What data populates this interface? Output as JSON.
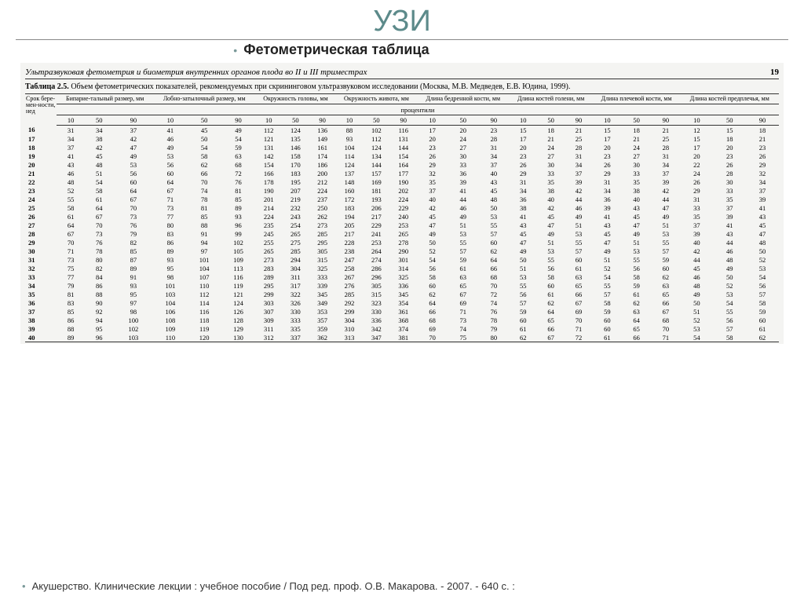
{
  "title": "УЗИ",
  "subtitle": "Фетометрическая таблица",
  "scan_header_left": "Ультразвуковая фетометрия и биометрия внутренних органов плода во II и III триместрах",
  "scan_header_page": "19",
  "caption_b": "Таблица 2.5.",
  "caption_rest": " Объем фетометрических показателей, рекомендуемых при скрининговом ультразвуковом исследовании (Москва, М.В. Медведев, Е.В. Юдина, 1999).",
  "col0": "Срок бере-мен-ности, нед",
  "groups": [
    "Бипарие-тальный размер, мм",
    "Лобно-затылочный размер, мм",
    "Окружность головы, мм",
    "Окружность живота, мм",
    "Длина бедренной кости, мм",
    "Длина костей голени, мм",
    "Длина плечевой кости, мм",
    "Длина костей предплечья, мм"
  ],
  "percentile_label": "процентили",
  "sub": [
    "10",
    "50",
    "90"
  ],
  "rows": [
    [
      "16",
      "31",
      "34",
      "37",
      "41",
      "45",
      "49",
      "112",
      "124",
      "136",
      "88",
      "102",
      "116",
      "17",
      "20",
      "23",
      "15",
      "18",
      "21",
      "15",
      "18",
      "21",
      "12",
      "15",
      "18"
    ],
    [
      "17",
      "34",
      "38",
      "42",
      "46",
      "50",
      "54",
      "121",
      "135",
      "149",
      "93",
      "112",
      "131",
      "20",
      "24",
      "28",
      "17",
      "21",
      "25",
      "17",
      "21",
      "25",
      "15",
      "18",
      "21"
    ],
    [
      "18",
      "37",
      "42",
      "47",
      "49",
      "54",
      "59",
      "131",
      "146",
      "161",
      "104",
      "124",
      "144",
      "23",
      "27",
      "31",
      "20",
      "24",
      "28",
      "20",
      "24",
      "28",
      "17",
      "20",
      "23"
    ],
    [
      "19",
      "41",
      "45",
      "49",
      "53",
      "58",
      "63",
      "142",
      "158",
      "174",
      "114",
      "134",
      "154",
      "26",
      "30",
      "34",
      "23",
      "27",
      "31",
      "23",
      "27",
      "31",
      "20",
      "23",
      "26"
    ],
    [
      "20",
      "43",
      "48",
      "53",
      "56",
      "62",
      "68",
      "154",
      "170",
      "186",
      "124",
      "144",
      "164",
      "29",
      "33",
      "37",
      "26",
      "30",
      "34",
      "26",
      "30",
      "34",
      "22",
      "26",
      "29"
    ],
    [
      "21",
      "46",
      "51",
      "56",
      "60",
      "66",
      "72",
      "166",
      "183",
      "200",
      "137",
      "157",
      "177",
      "32",
      "36",
      "40",
      "29",
      "33",
      "37",
      "29",
      "33",
      "37",
      "24",
      "28",
      "32"
    ],
    [
      "22",
      "48",
      "54",
      "60",
      "64",
      "70",
      "76",
      "178",
      "195",
      "212",
      "148",
      "169",
      "190",
      "35",
      "39",
      "43",
      "31",
      "35",
      "39",
      "31",
      "35",
      "39",
      "26",
      "30",
      "34"
    ],
    [
      "23",
      "52",
      "58",
      "64",
      "67",
      "74",
      "81",
      "190",
      "207",
      "224",
      "160",
      "181",
      "202",
      "37",
      "41",
      "45",
      "34",
      "38",
      "42",
      "34",
      "38",
      "42",
      "29",
      "33",
      "37"
    ],
    [
      "24",
      "55",
      "61",
      "67",
      "71",
      "78",
      "85",
      "201",
      "219",
      "237",
      "172",
      "193",
      "224",
      "40",
      "44",
      "48",
      "36",
      "40",
      "44",
      "36",
      "40",
      "44",
      "31",
      "35",
      "39"
    ],
    [
      "25",
      "58",
      "64",
      "70",
      "73",
      "81",
      "89",
      "214",
      "232",
      "250",
      "183",
      "206",
      "229",
      "42",
      "46",
      "50",
      "38",
      "42",
      "46",
      "39",
      "43",
      "47",
      "33",
      "37",
      "41"
    ],
    [
      "26",
      "61",
      "67",
      "73",
      "77",
      "85",
      "93",
      "224",
      "243",
      "262",
      "194",
      "217",
      "240",
      "45",
      "49",
      "53",
      "41",
      "45",
      "49",
      "41",
      "45",
      "49",
      "35",
      "39",
      "43"
    ],
    [
      "27",
      "64",
      "70",
      "76",
      "80",
      "88",
      "96",
      "235",
      "254",
      "273",
      "205",
      "229",
      "253",
      "47",
      "51",
      "55",
      "43",
      "47",
      "51",
      "43",
      "47",
      "51",
      "37",
      "41",
      "45"
    ],
    [
      "28",
      "67",
      "73",
      "79",
      "83",
      "91",
      "99",
      "245",
      "265",
      "285",
      "217",
      "241",
      "265",
      "49",
      "53",
      "57",
      "45",
      "49",
      "53",
      "45",
      "49",
      "53",
      "39",
      "43",
      "47"
    ],
    [
      "29",
      "70",
      "76",
      "82",
      "86",
      "94",
      "102",
      "255",
      "275",
      "295",
      "228",
      "253",
      "278",
      "50",
      "55",
      "60",
      "47",
      "51",
      "55",
      "47",
      "51",
      "55",
      "40",
      "44",
      "48"
    ],
    [
      "30",
      "71",
      "78",
      "85",
      "89",
      "97",
      "105",
      "265",
      "285",
      "305",
      "238",
      "264",
      "290",
      "52",
      "57",
      "62",
      "49",
      "53",
      "57",
      "49",
      "53",
      "57",
      "42",
      "46",
      "50"
    ],
    [
      "31",
      "73",
      "80",
      "87",
      "93",
      "101",
      "109",
      "273",
      "294",
      "315",
      "247",
      "274",
      "301",
      "54",
      "59",
      "64",
      "50",
      "55",
      "60",
      "51",
      "55",
      "59",
      "44",
      "48",
      "52"
    ],
    [
      "32",
      "75",
      "82",
      "89",
      "95",
      "104",
      "113",
      "283",
      "304",
      "325",
      "258",
      "286",
      "314",
      "56",
      "61",
      "66",
      "51",
      "56",
      "61",
      "52",
      "56",
      "60",
      "45",
      "49",
      "53"
    ],
    [
      "33",
      "77",
      "84",
      "91",
      "98",
      "107",
      "116",
      "289",
      "311",
      "333",
      "267",
      "296",
      "325",
      "58",
      "63",
      "68",
      "53",
      "58",
      "63",
      "54",
      "58",
      "62",
      "46",
      "50",
      "54"
    ],
    [
      "34",
      "79",
      "86",
      "93",
      "101",
      "110",
      "119",
      "295",
      "317",
      "339",
      "276",
      "305",
      "336",
      "60",
      "65",
      "70",
      "55",
      "60",
      "65",
      "55",
      "59",
      "63",
      "48",
      "52",
      "56"
    ],
    [
      "35",
      "81",
      "88",
      "95",
      "103",
      "112",
      "121",
      "299",
      "322",
      "345",
      "285",
      "315",
      "345",
      "62",
      "67",
      "72",
      "56",
      "61",
      "66",
      "57",
      "61",
      "65",
      "49",
      "53",
      "57"
    ],
    [
      "36",
      "83",
      "90",
      "97",
      "104",
      "114",
      "124",
      "303",
      "326",
      "349",
      "292",
      "323",
      "354",
      "64",
      "69",
      "74",
      "57",
      "62",
      "67",
      "58",
      "62",
      "66",
      "50",
      "54",
      "58"
    ],
    [
      "37",
      "85",
      "92",
      "98",
      "106",
      "116",
      "126",
      "307",
      "330",
      "353",
      "299",
      "330",
      "361",
      "66",
      "71",
      "76",
      "59",
      "64",
      "69",
      "59",
      "63",
      "67",
      "51",
      "55",
      "59"
    ],
    [
      "38",
      "86",
      "94",
      "100",
      "108",
      "118",
      "128",
      "309",
      "333",
      "357",
      "304",
      "336",
      "368",
      "68",
      "73",
      "78",
      "60",
      "65",
      "70",
      "60",
      "64",
      "68",
      "52",
      "56",
      "60"
    ],
    [
      "39",
      "88",
      "95",
      "102",
      "109",
      "119",
      "129",
      "311",
      "335",
      "359",
      "310",
      "342",
      "374",
      "69",
      "74",
      "79",
      "61",
      "66",
      "71",
      "60",
      "65",
      "70",
      "53",
      "57",
      "61"
    ],
    [
      "40",
      "89",
      "96",
      "103",
      "110",
      "120",
      "130",
      "312",
      "337",
      "362",
      "313",
      "347",
      "381",
      "70",
      "75",
      "80",
      "62",
      "67",
      "72",
      "61",
      "66",
      "71",
      "54",
      "58",
      "62"
    ]
  ],
  "footer": "Акушерство. Клинические лекции : учебное пособие / Под ред. проф. О.В. Макарова. - 2007. - 640 с. :",
  "colors": {
    "title": "#5c8a8a",
    "bullet": "#7a9999"
  }
}
